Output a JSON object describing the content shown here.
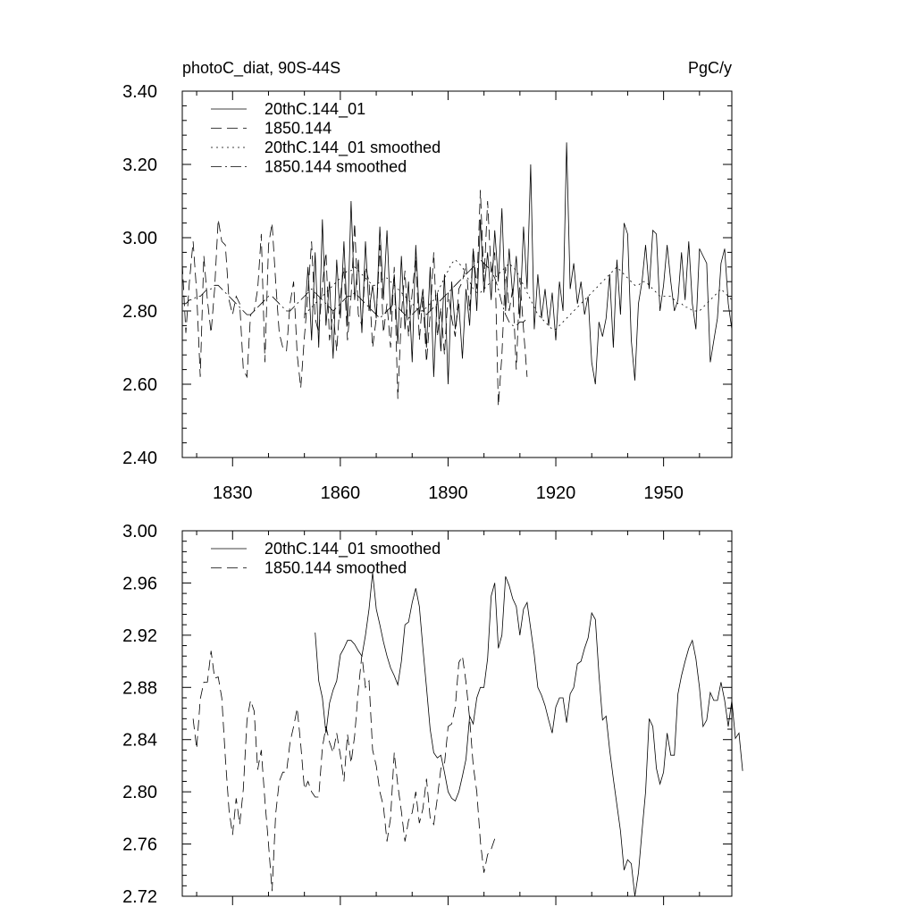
{
  "page": {
    "background": "#ffffff",
    "line_color": "#000000"
  },
  "chart_data": [
    {
      "type": "line",
      "title_left": "photoC_diat, 90S-44S",
      "title_right": "PgC/y",
      "xlim": [
        1816,
        1969
      ],
      "ylim": [
        2.4,
        3.4
      ],
      "xticks": [
        1830,
        1860,
        1890,
        1920,
        1950
      ],
      "xtick_labels": [
        "1830",
        "1860",
        "1890",
        "1920",
        "1950"
      ],
      "yticks": [
        2.4,
        2.6,
        2.8,
        3.0,
        3.2,
        3.4
      ],
      "ytick_labels": [
        "2.40",
        "2.60",
        "2.80",
        "3.00",
        "3.20",
        "3.40"
      ],
      "legend_position": "top-left",
      "series": [
        {
          "name": "20thC.144_01",
          "style": "solid",
          "x_start": 1850,
          "values": [
            2.78,
            2.92,
            2.72,
            2.96,
            2.7,
            3.05,
            2.76,
            2.88,
            2.67,
            2.94,
            2.78,
            2.99,
            2.76,
            3.1,
            2.83,
            2.94,
            2.74,
            2.99,
            2.8,
            2.87,
            2.78,
            3.03,
            2.83,
            3.02,
            2.79,
            2.9,
            2.71,
            2.95,
            2.75,
            2.88,
            2.66,
            2.98,
            2.79,
            2.86,
            2.7,
            2.92,
            2.62,
            2.85,
            2.69,
            2.9,
            2.6,
            2.88,
            2.75,
            2.82,
            2.67,
            2.86,
            2.76,
            2.97,
            2.8,
            3.05,
            2.85,
            2.96,
            2.83,
            3.02,
            2.88,
            3.08,
            2.8,
            2.97,
            2.84,
            2.95,
            2.78,
            3.03,
            2.86,
            3.2,
            2.75,
            2.9,
            2.78,
            2.86,
            2.76,
            2.85,
            2.72,
            2.88,
            2.8,
            3.26,
            2.86,
            2.93,
            2.82,
            2.88,
            2.79,
            2.84,
            2.66,
            2.6,
            2.77,
            2.73,
            2.78,
            2.9,
            2.7,
            2.94,
            2.79,
            3.04,
            3.01,
            2.72,
            2.61,
            2.82,
            2.88,
            2.98,
            2.86,
            3.02,
            3.01,
            2.8,
            2.87,
            2.98,
            2.88,
            2.8,
            2.83,
            2.96,
            2.83,
            2.99,
            2.82,
            2.75,
            2.97,
            2.95,
            2.93,
            2.66,
            2.72,
            2.78,
            2.93,
            2.97,
            2.82,
            2.75
          ]
        },
        {
          "name": "1850.144",
          "style": "dashed",
          "x_start": 1816,
          "values": [
            2.93,
            2.74,
            2.88,
            2.99,
            2.85,
            2.62,
            2.95,
            2.83,
            2.74,
            2.86,
            3.05,
            2.99,
            2.98,
            2.83,
            2.79,
            2.84,
            2.82,
            2.64,
            2.62,
            2.79,
            2.8,
            2.86,
            3.01,
            2.66,
            2.98,
            3.04,
            2.88,
            2.74,
            2.7,
            2.69,
            2.82,
            2.88,
            2.68,
            2.59,
            2.73,
            2.85,
            2.99,
            2.78,
            2.74,
            2.87,
            2.96,
            2.72,
            2.8,
            2.69,
            2.84,
            2.92,
            2.72,
            2.84,
            3.04,
            2.79,
            2.76,
            2.92,
            2.88,
            2.7,
            2.78,
            2.98,
            2.74,
            2.82,
            2.7,
            2.92,
            2.56,
            2.79,
            2.91,
            2.73,
            2.85,
            2.95,
            2.72,
            2.84,
            2.66,
            2.79,
            2.96,
            2.73,
            2.81,
            2.68,
            2.85,
            2.78,
            2.73,
            2.86,
            2.88,
            2.93,
            2.8,
            2.97,
            2.86,
            3.13,
            2.88,
            3.1,
            2.9,
            2.96,
            2.54,
            2.68,
            2.92,
            2.8,
            2.86,
            2.64,
            2.89,
            2.75,
            2.62
          ]
        },
        {
          "name": "20thC.144_01 smoothed",
          "style": "dotted",
          "x_start": 1850,
          "values": [
            2.79,
            2.8,
            2.81,
            2.82,
            2.83,
            2.84,
            2.85,
            2.86,
            2.87,
            2.88,
            2.89,
            2.9,
            2.91,
            2.91,
            2.92,
            2.91,
            2.9,
            2.89,
            2.88,
            2.87,
            2.87,
            2.88,
            2.89,
            2.89,
            2.88,
            2.87,
            2.86,
            2.85,
            2.84,
            2.83,
            2.82,
            2.81,
            2.8,
            2.8,
            2.81,
            2.82,
            2.83,
            2.85,
            2.87,
            2.89,
            2.91,
            2.93,
            2.94,
            2.93,
            2.92,
            2.9,
            2.88,
            2.86,
            2.85,
            2.85,
            2.86,
            2.87,
            2.88,
            2.89,
            2.9,
            2.91,
            2.92,
            2.93,
            2.92,
            2.91,
            2.89,
            2.87,
            2.85,
            2.83,
            2.81,
            2.79,
            2.78,
            2.77,
            2.76,
            2.75,
            2.75,
            2.76,
            2.77,
            2.78,
            2.79,
            2.8,
            2.81,
            2.82,
            2.83,
            2.84,
            2.85,
            2.86,
            2.87,
            2.88,
            2.89,
            2.9,
            2.91,
            2.92,
            2.91,
            2.9,
            2.89,
            2.88,
            2.87,
            2.87,
            2.88,
            2.88,
            2.87,
            2.86,
            2.85,
            2.84,
            2.84,
            2.84,
            2.84,
            2.83,
            2.82,
            2.82,
            2.81,
            2.81,
            2.8,
            2.8,
            2.8,
            2.81,
            2.82,
            2.83,
            2.84,
            2.85,
            2.86,
            2.85,
            2.84,
            2.83
          ]
        },
        {
          "name": "1850.144 smoothed",
          "style": "dashdot",
          "x_start": 1816,
          "values": [
            2.82,
            2.82,
            2.83,
            2.83,
            2.84,
            2.84,
            2.85,
            2.86,
            2.86,
            2.87,
            2.87,
            2.86,
            2.85,
            2.84,
            2.83,
            2.82,
            2.81,
            2.8,
            2.79,
            2.79,
            2.8,
            2.81,
            2.82,
            2.83,
            2.84,
            2.84,
            2.83,
            2.82,
            2.81,
            2.8,
            2.8,
            2.81,
            2.82,
            2.83,
            2.84,
            2.85,
            2.86,
            2.85,
            2.84,
            2.83,
            2.82,
            2.81,
            2.8,
            2.81,
            2.82,
            2.83,
            2.84,
            2.84,
            2.85,
            2.84,
            2.83,
            2.82,
            2.81,
            2.8,
            2.79,
            2.78,
            2.79,
            2.8,
            2.81,
            2.82,
            2.81,
            2.8,
            2.79,
            2.78,
            2.79,
            2.8,
            2.81,
            2.8,
            2.79,
            2.8,
            2.81,
            2.82,
            2.83,
            2.84,
            2.85,
            2.86,
            2.87,
            2.88,
            2.89,
            2.9,
            2.91,
            2.92,
            2.93,
            2.94,
            2.93,
            2.92,
            2.91,
            2.89,
            2.86,
            2.82,
            2.79,
            2.77,
            2.76,
            2.76,
            2.77,
            2.77,
            2.78
          ]
        }
      ]
    },
    {
      "type": "line",
      "xlim": [
        1816,
        1969
      ],
      "ylim": [
        2.72,
        3.0
      ],
      "xticks": [
        1830,
        1860,
        1890,
        1920,
        1950
      ],
      "yticks": [
        2.72,
        2.76,
        2.8,
        2.84,
        2.88,
        2.92,
        2.96,
        3.0
      ],
      "ytick_labels": [
        "2.72",
        "2.76",
        "2.80",
        "2.84",
        "2.88",
        "2.92",
        "2.96",
        "3.00"
      ],
      "legend_position": "top-left",
      "series": [
        {
          "name": "20thC.144_01 smoothed",
          "style": "solid",
          "x_start": 1853,
          "values": [
            2.922,
            2.885,
            2.872,
            2.845,
            2.868,
            2.878,
            2.885,
            2.905,
            2.91,
            2.916,
            2.916,
            2.913,
            2.908,
            2.904,
            2.92,
            2.94,
            2.968,
            2.94,
            2.928,
            2.915,
            2.904,
            2.895,
            2.889,
            2.882,
            2.9,
            2.928,
            2.93,
            2.945,
            2.956,
            2.942,
            2.91,
            2.88,
            2.848,
            2.83,
            2.826,
            2.828,
            2.815,
            2.8,
            2.795,
            2.793,
            2.8,
            2.812,
            2.825,
            2.858,
            2.852,
            2.872,
            2.88,
            2.88,
            2.902,
            2.95,
            2.96,
            2.91,
            2.92,
            2.965,
            2.958,
            2.948,
            2.942,
            2.92,
            2.94,
            2.945,
            2.925,
            2.905,
            2.88,
            2.874,
            2.866,
            2.855,
            2.845,
            2.865,
            2.872,
            2.872,
            2.853,
            2.875,
            2.88,
            2.898,
            2.9,
            2.91,
            2.918,
            2.937,
            2.932,
            2.89,
            2.855,
            2.858,
            2.832,
            2.81,
            2.79,
            2.77,
            2.74,
            2.748,
            2.745,
            2.72,
            2.738,
            2.77,
            2.8,
            2.856,
            2.85,
            2.818,
            2.806,
            2.815,
            2.845,
            2.828,
            2.828,
            2.875,
            2.889,
            2.9,
            2.91,
            2.916,
            2.902,
            2.88,
            2.85,
            2.855,
            2.876,
            2.87,
            2.87,
            2.884,
            2.87,
            2.85,
            2.87,
            2.841,
            2.845,
            2.816
          ]
        },
        {
          "name": "1850.144 smoothed",
          "style": "dashed",
          "x_start": 1819,
          "values": [
            2.856,
            2.833,
            2.871,
            2.884,
            2.884,
            2.908,
            2.887,
            2.888,
            2.872,
            2.826,
            2.786,
            2.767,
            2.795,
            2.775,
            2.802,
            2.855,
            2.87,
            2.862,
            2.817,
            2.832,
            2.793,
            2.76,
            2.724,
            2.783,
            2.808,
            2.815,
            2.815,
            2.838,
            2.85,
            2.864,
            2.836,
            2.802,
            2.808,
            2.8,
            2.796,
            2.796,
            2.834,
            2.85,
            2.838,
            2.83,
            2.845,
            2.828,
            2.808,
            2.844,
            2.822,
            2.843,
            2.878,
            2.905,
            2.88,
            2.885,
            2.832,
            2.82,
            2.8,
            2.789,
            2.762,
            2.78,
            2.83,
            2.805,
            2.785,
            2.762,
            2.778,
            2.784,
            2.8,
            2.776,
            2.787,
            2.81,
            2.78,
            2.775,
            2.795,
            2.818,
            2.821,
            2.85,
            2.852,
            2.865,
            2.899,
            2.904,
            2.884,
            2.856,
            2.82,
            2.8,
            2.762,
            2.738,
            2.752,
            2.756,
            2.764
          ]
        }
      ]
    }
  ]
}
